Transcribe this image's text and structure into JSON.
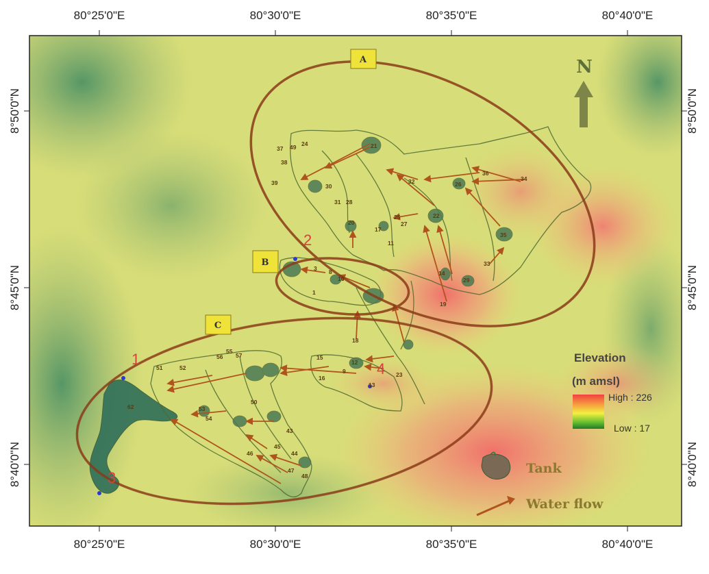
{
  "axes": {
    "top": [
      "80°25'0\"E",
      "80°30'0\"E",
      "80°35'0\"E",
      "80°40'0\"E"
    ],
    "bottom": [
      "80°25'0\"E",
      "80°30'0\"E",
      "80°35'0\"E",
      "80°40'0\"E"
    ],
    "left": [
      "8°50'0\"N",
      "8°45'0\"N",
      "8°40'0\"N"
    ],
    "right": [
      "8°50'0\"N",
      "8°45'0\"N",
      "8°40'0\"N"
    ]
  },
  "north_arrow": {
    "label": "N"
  },
  "zones": [
    {
      "label": "A"
    },
    {
      "label": "B"
    },
    {
      "label": "C"
    }
  ],
  "sites": [
    "1",
    "2",
    "3",
    "4"
  ],
  "tank_numbers": [
    "37",
    "49",
    "24",
    "38",
    "21",
    "36",
    "34",
    "39",
    "32",
    "26",
    "30",
    "31",
    "28",
    "25",
    "27",
    "22",
    "11",
    "33",
    "17",
    "35",
    "3",
    "8",
    "20",
    "1",
    "16",
    "15",
    "12",
    "18",
    "9",
    "23",
    "10",
    "13",
    "14",
    "19",
    "29",
    "52",
    "51",
    "56",
    "57",
    "55",
    "50",
    "53",
    "54",
    "62",
    "43",
    "44",
    "45",
    "46",
    "47",
    "48"
  ],
  "legend": {
    "title": "Elevation",
    "unit": "(m amsl)",
    "high": "High : 226",
    "low": "Low : 17",
    "tank_label": "Tank",
    "flow_label": "Water flow"
  },
  "colors": {
    "frame": "#222222",
    "low_elev": "#2f7a55",
    "mid_elev": "#e8e860",
    "high_elev": "#f07070",
    "ellipse": "#8a3a18",
    "flow_arrow": "#b0541e",
    "site_label": "#d84040"
  }
}
